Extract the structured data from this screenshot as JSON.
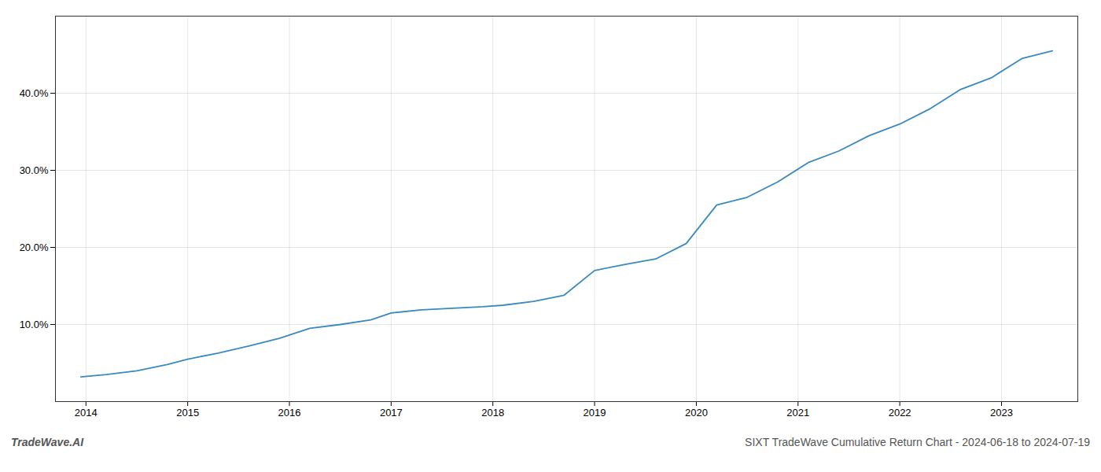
{
  "chart_data": {
    "type": "line",
    "x": [
      2013.95,
      2014.2,
      2014.5,
      2014.8,
      2015.0,
      2015.3,
      2015.6,
      2015.9,
      2016.2,
      2016.5,
      2016.8,
      2017.0,
      2017.3,
      2017.6,
      2017.9,
      2018.1,
      2018.4,
      2018.7,
      2019.0,
      2019.3,
      2019.6,
      2019.9,
      2020.2,
      2020.5,
      2020.8,
      2021.1,
      2021.4,
      2021.7,
      2022.0,
      2022.3,
      2022.6,
      2022.9,
      2023.2,
      2023.5
    ],
    "values": [
      3.2,
      3.5,
      4.0,
      4.8,
      5.5,
      6.3,
      7.2,
      8.2,
      9.5,
      10.0,
      10.6,
      11.5,
      11.9,
      12.1,
      12.3,
      12.5,
      13.0,
      13.8,
      17.0,
      17.8,
      18.5,
      20.5,
      25.5,
      26.5,
      28.5,
      31.0,
      32.5,
      34.5,
      36.0,
      38.0,
      40.5,
      42.0,
      44.5,
      45.5
    ],
    "color": "#3a8abf",
    "xlim": [
      2013.7,
      2023.75
    ],
    "ylim": [
      0,
      50
    ],
    "xticks": [
      2014,
      2015,
      2016,
      2017,
      2018,
      2019,
      2020,
      2021,
      2022,
      2023
    ],
    "yticks": [
      {
        "value": 10.0,
        "label": "10.0%"
      },
      {
        "value": 20.0,
        "label": "20.0%"
      },
      {
        "value": 30.0,
        "label": "30.0%"
      },
      {
        "value": 40.0,
        "label": "40.0%"
      }
    ],
    "grid": true,
    "annotations": [
      "TradeWave.AI",
      "SIXT TradeWave Cumulative Return Chart - 2024-06-18 to 2024-07-19"
    ]
  }
}
